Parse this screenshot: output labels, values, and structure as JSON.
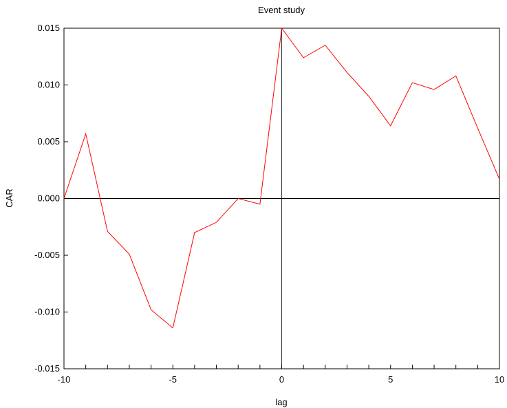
{
  "chart_data": {
    "type": "line",
    "title": "Event study",
    "xlabel": "lag",
    "ylabel": "CAR",
    "xlim": [
      -10,
      10
    ],
    "ylim": [
      -0.015,
      0.015
    ],
    "x_ticks": [
      -10,
      -5,
      0,
      5,
      10
    ],
    "x_tick_labels": [
      "-10",
      "-5",
      "0",
      "5",
      "10"
    ],
    "y_ticks": [
      -0.015,
      -0.01,
      -0.005,
      0.0,
      0.005,
      0.01,
      0.015
    ],
    "y_tick_labels": [
      "-0.015",
      "-0.010",
      "-0.005",
      "0.000",
      "0.005",
      "0.010",
      "0.015"
    ],
    "grid": false,
    "reference_lines": {
      "y": 0,
      "x": 0
    },
    "series": [
      {
        "color": "#ff0000",
        "x": [
          -10,
          -9,
          -8,
          -7,
          -6,
          -5,
          -4,
          -3,
          -2,
          -1,
          0,
          1,
          2,
          3,
          4,
          5,
          6,
          7,
          8,
          9,
          10
        ],
        "y": [
          0.0,
          0.0057,
          -0.0029,
          -0.0049,
          -0.0098,
          -0.0114,
          -0.003,
          -0.0021,
          0.0,
          -0.0005,
          0.015,
          0.0124,
          0.0135,
          0.0111,
          0.009,
          0.0064,
          0.0102,
          0.0096,
          0.0108,
          0.0062,
          0.0017
        ]
      }
    ]
  }
}
